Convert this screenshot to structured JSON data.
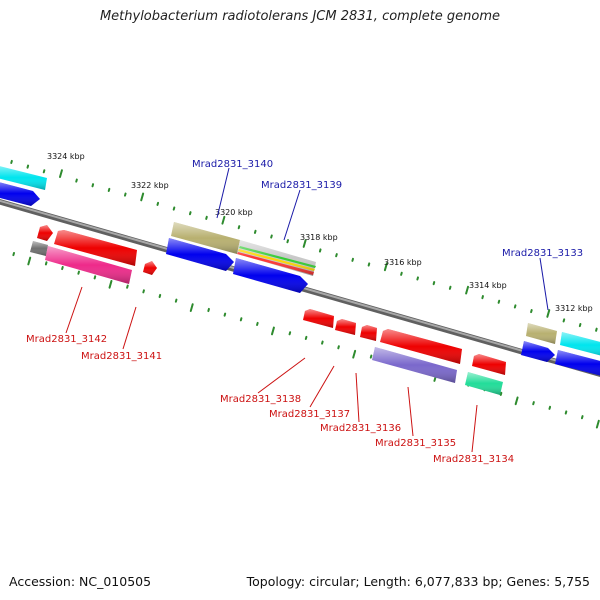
{
  "title": "Methylobacterium radiotolerans JCM 2831, complete genome",
  "footer": {
    "accession": "Accession: NC_010505",
    "summary": "Topology: circular; Length: 6,077,833 bp; Genes: 5,755"
  },
  "scale_labels": [
    "3324 kbp",
    "3322 kbp",
    "3320 kbp",
    "3318 kbp",
    "3316 kbp",
    "3314 kbp",
    "3312 kbp"
  ],
  "gene_labels_top": [
    "Mrad2831_3140",
    "Mrad2831_3139",
    "Mrad2831_3133"
  ],
  "gene_labels_bottom": [
    "Mrad2831_3142",
    "Mrad2831_3141",
    "Mrad2831_3138",
    "Mrad2831_3137",
    "Mrad2831_3136",
    "Mrad2831_3135",
    "Mrad2831_3134"
  ],
  "colors": {
    "backbone": "#808080",
    "tick": "#2e8b2e",
    "red": "#ee0000",
    "blue": "#0000ee",
    "olive": "#b8b070",
    "cyan": "#00e5ee",
    "magenta": "#ee2a8a",
    "purple": "#7a68cc",
    "teal": "#22dd99",
    "gray": "#707070"
  }
}
